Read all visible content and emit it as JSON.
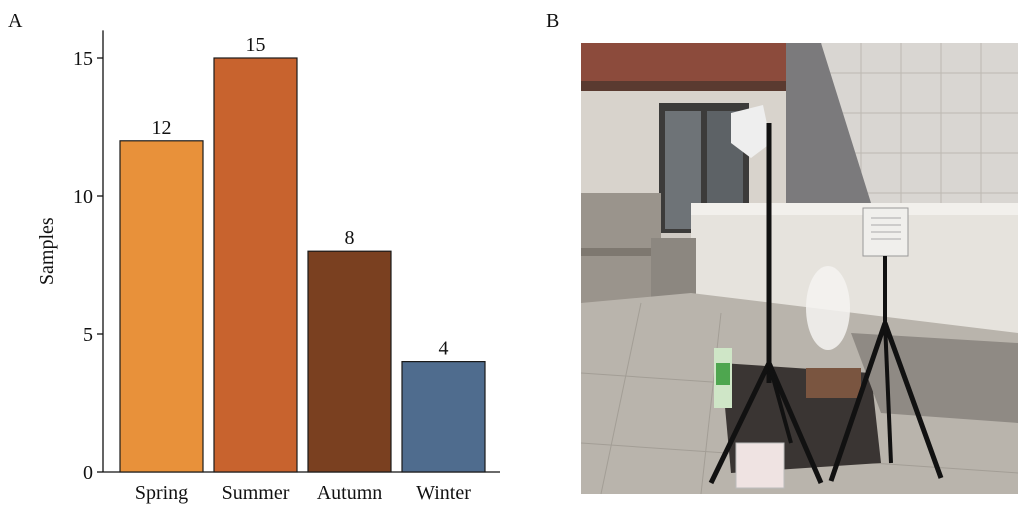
{
  "panels": {
    "a_label": "A",
    "b_label": "B"
  },
  "chart_data": {
    "type": "bar",
    "categories": [
      "Spring",
      "Summer",
      "Autumn",
      "Winter"
    ],
    "values": [
      12,
      15,
      8,
      4
    ],
    "data_labels": [
      "12",
      "15",
      "8",
      "4"
    ],
    "colors": [
      "#E8913A",
      "#C8632E",
      "#7A4020",
      "#4F6C8E"
    ],
    "title": "",
    "xlabel": "",
    "ylabel": "Samples",
    "ylim": [
      0,
      16
    ],
    "yticks": [
      0,
      5,
      10,
      15
    ],
    "grid": false,
    "legend": "none"
  }
}
